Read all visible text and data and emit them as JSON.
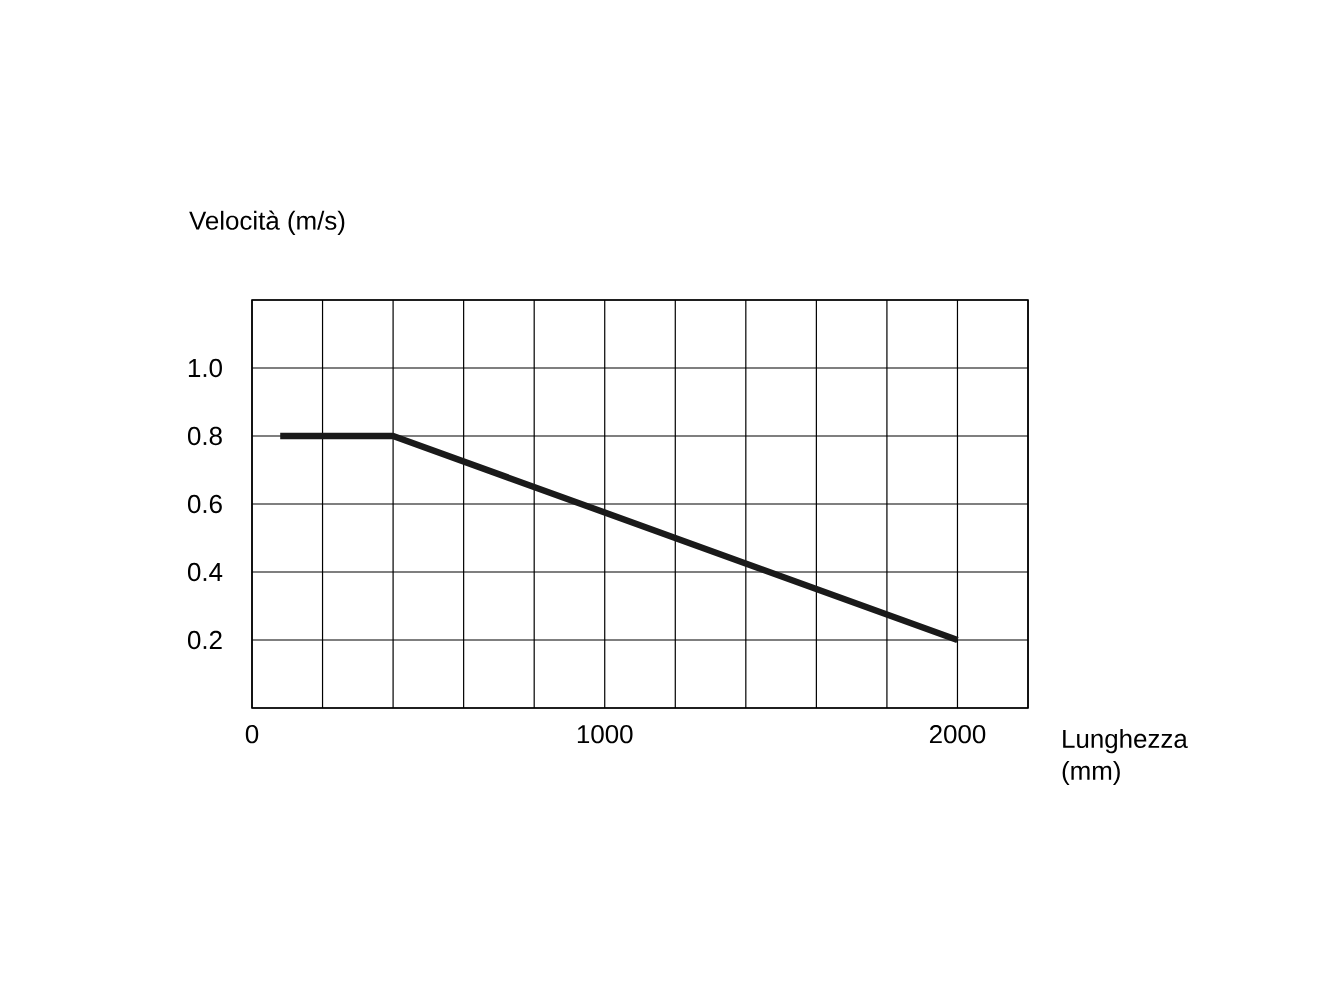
{
  "chart_data": {
    "type": "line",
    "xlabel": "Lunghezza (mm)",
    "ylabel": "Velocità (m/s)",
    "x": [
      80,
      400,
      2000
    ],
    "series": [
      {
        "color": "#1a1a1a",
        "values": [
          0.8,
          0.8,
          0.2
        ]
      }
    ],
    "xlim": [
      0,
      2200
    ],
    "xticks": [
      0,
      {
        "value": 200,
        "label": null
      },
      {
        "value": 400,
        "label": null
      },
      {
        "value": 600,
        "label": null
      },
      {
        "value": 800,
        "label": null
      },
      1000,
      {
        "value": 1200,
        "label": null
      },
      {
        "value": 1400,
        "label": null
      },
      {
        "value": 1600,
        "label": null
      },
      {
        "value": 1800,
        "label": null
      },
      2000,
      {
        "value": 2200,
        "label": null
      }
    ],
    "ylim": [
      0,
      1.2
    ],
    "yticks": [
      {
        "value": 0,
        "label": null
      },
      {
        "value": 0.2,
        "label": "0.2"
      },
      {
        "value": 0.4,
        "label": "0.4"
      },
      {
        "value": 0.6,
        "label": "0.6"
      },
      {
        "value": 0.8,
        "label": "0.8"
      },
      {
        "value": 1,
        "label": "1.0"
      },
      {
        "value": 1.2,
        "label": null
      }
    ],
    "grid": true,
    "marker": "none",
    "line_style": "solid"
  }
}
